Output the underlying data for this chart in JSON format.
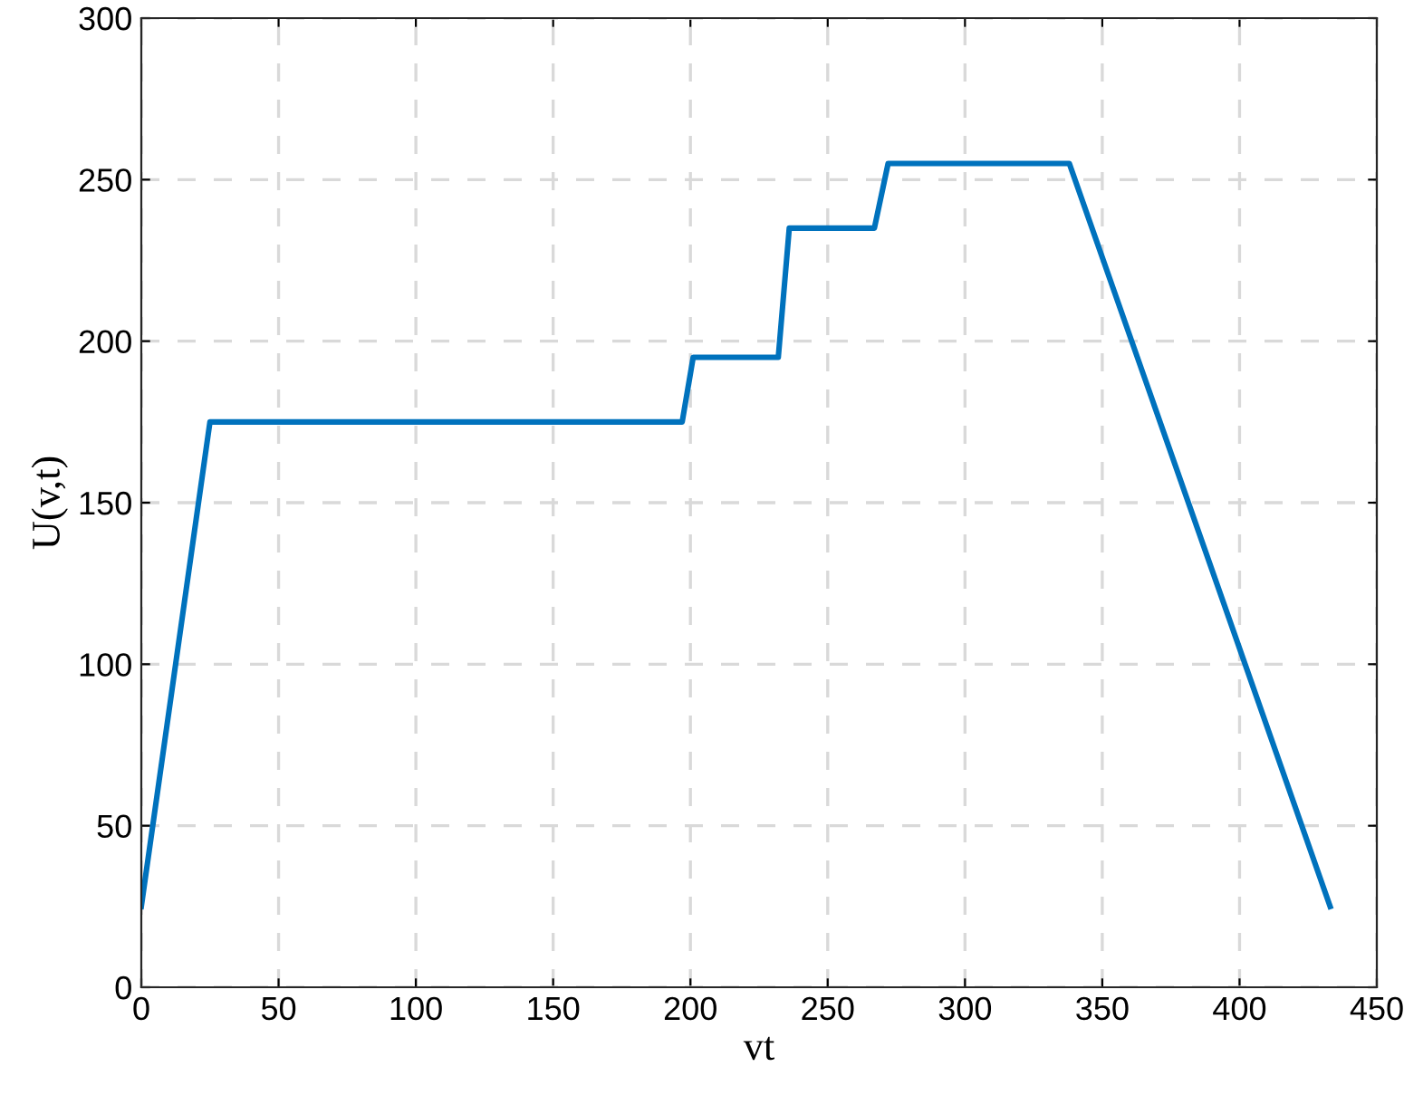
{
  "chart_data": {
    "type": "line",
    "xlabel": "vt",
    "ylabel": "U(v,t)",
    "x": [
      0,
      25,
      197,
      201,
      232,
      236,
      267,
      272,
      338,
      433
    ],
    "series": [
      {
        "color": "#0072bd",
        "values": [
          25,
          175,
          175,
          195,
          195,
          235,
          235,
          255,
          255,
          25
        ]
      }
    ],
    "xlim": [
      0,
      450
    ],
    "xticks": [
      0,
      50,
      100,
      150,
      200,
      250,
      300,
      350,
      400,
      450
    ],
    "ylim": [
      0,
      300
    ],
    "yticks": [
      0,
      50,
      100,
      150,
      200,
      250,
      300
    ],
    "grid": true,
    "line_style": "solid",
    "marker": "none",
    "legend": false
  }
}
